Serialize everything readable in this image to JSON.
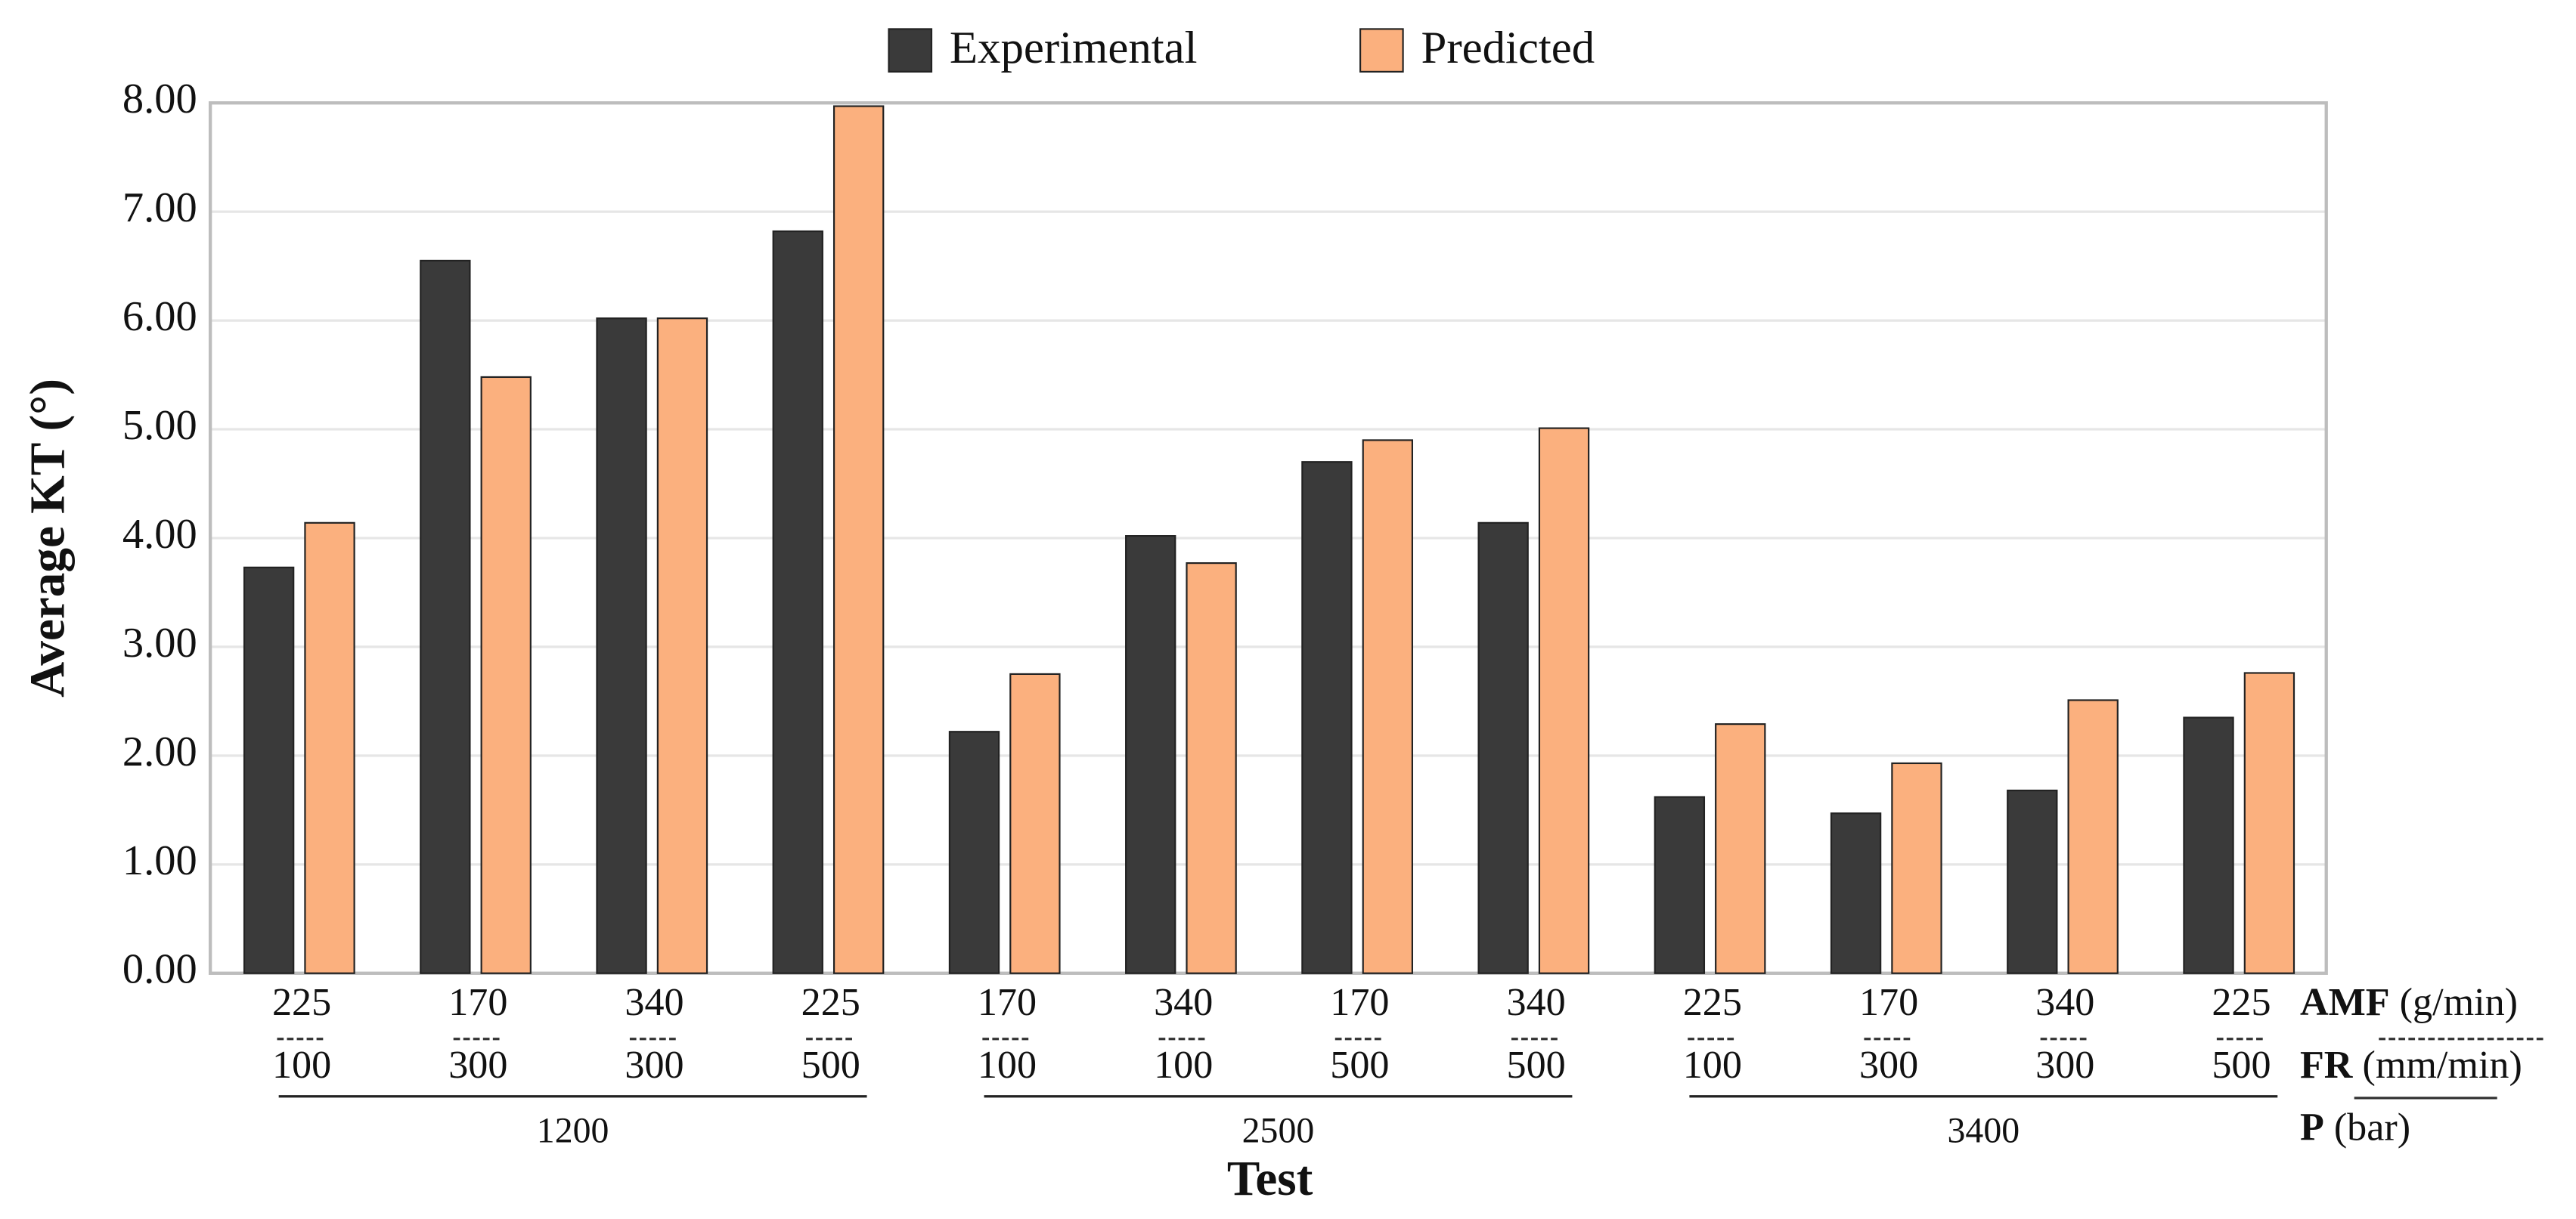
{
  "chart_data": {
    "type": "bar",
    "y_label": "Average KT (°)",
    "x_label": "Test",
    "amf": [
      "225",
      "170",
      "340",
      "225",
      "170",
      "340",
      "170",
      "340",
      "225",
      "170",
      "340",
      "225"
    ],
    "fr": [
      "100",
      "300",
      "300",
      "500",
      "100",
      "100",
      "500",
      "500",
      "100",
      "300",
      "300",
      "500"
    ],
    "p_groups": [
      {
        "label": "1200",
        "size": 4
      },
      {
        "label": "2500",
        "size": 4
      },
      {
        "label": "3400",
        "size": 4
      }
    ],
    "row_labels": [
      {
        "name": "AMF",
        "unit": "(g/min)"
      },
      {
        "name": "FR",
        "unit": "(mm/min)"
      },
      {
        "name": "P",
        "unit": "(bar)"
      }
    ],
    "series": [
      {
        "name": "Experimental",
        "color": "#3a3a3a",
        "values": [
          3.73,
          6.55,
          6.02,
          6.82,
          2.22,
          4.02,
          4.7,
          4.14,
          1.62,
          1.47,
          1.68,
          2.35
        ]
      },
      {
        "name": "Predicted",
        "color": "#fbb07e",
        "values": [
          4.14,
          5.48,
          6.02,
          7.97,
          2.75,
          3.77,
          4.9,
          5.01,
          2.29,
          1.93,
          2.51,
          2.76
        ]
      }
    ],
    "ylim": [
      0,
      8
    ],
    "yticks": [
      {
        "value": 0,
        "label": "0.00"
      },
      {
        "value": 1,
        "label": "1.00"
      },
      {
        "value": 2,
        "label": "2.00"
      },
      {
        "value": 3,
        "label": "3.00"
      },
      {
        "value": 4,
        "label": "4.00"
      },
      {
        "value": 5,
        "label": "5.00"
      },
      {
        "value": 6,
        "label": "6.00"
      },
      {
        "value": 7,
        "label": "7.00"
      },
      {
        "value": 8,
        "label": "8.00"
      }
    ],
    "grid": true
  }
}
